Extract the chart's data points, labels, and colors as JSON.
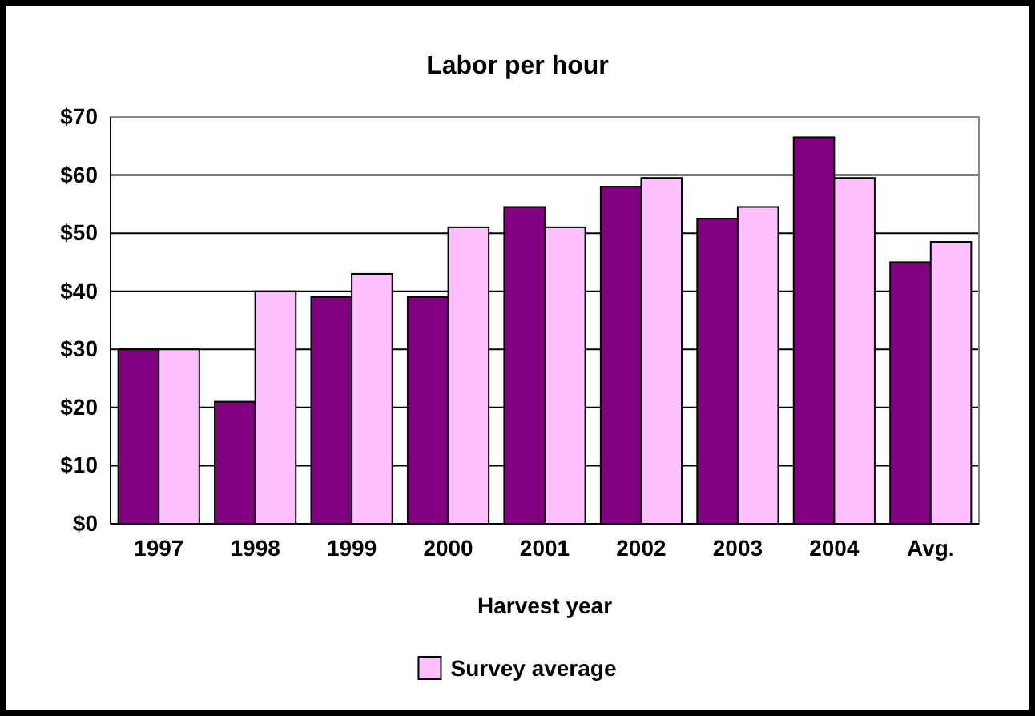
{
  "chart_data": {
    "type": "bar",
    "title": "Labor per hour",
    "xlabel": "Harvest year",
    "categories": [
      "1997",
      "1998",
      "1999",
      "2000",
      "2001",
      "2002",
      "2003",
      "2004",
      "Avg."
    ],
    "series": [
      {
        "color": "#800080",
        "values": [
          30,
          21,
          39,
          39,
          54.5,
          58,
          52.5,
          66.5,
          45
        ]
      },
      {
        "name": "Survey average",
        "color": "#ffc0ff",
        "values": [
          30,
          40,
          43,
          51,
          51,
          59.5,
          54.5,
          59.5,
          48.5
        ]
      }
    ],
    "ylim": [
      0,
      70
    ],
    "yticks": [
      {
        "value": 0,
        "label": "$0"
      },
      {
        "value": 10,
        "label": "$10"
      },
      {
        "value": 20,
        "label": "$20"
      },
      {
        "value": 30,
        "label": "$30"
      },
      {
        "value": 40,
        "label": "$40"
      },
      {
        "value": 50,
        "label": "$50"
      },
      {
        "value": 60,
        "label": "$60"
      },
      {
        "value": 70,
        "label": "$70"
      }
    ],
    "grid": "y",
    "legend": "bottom"
  }
}
